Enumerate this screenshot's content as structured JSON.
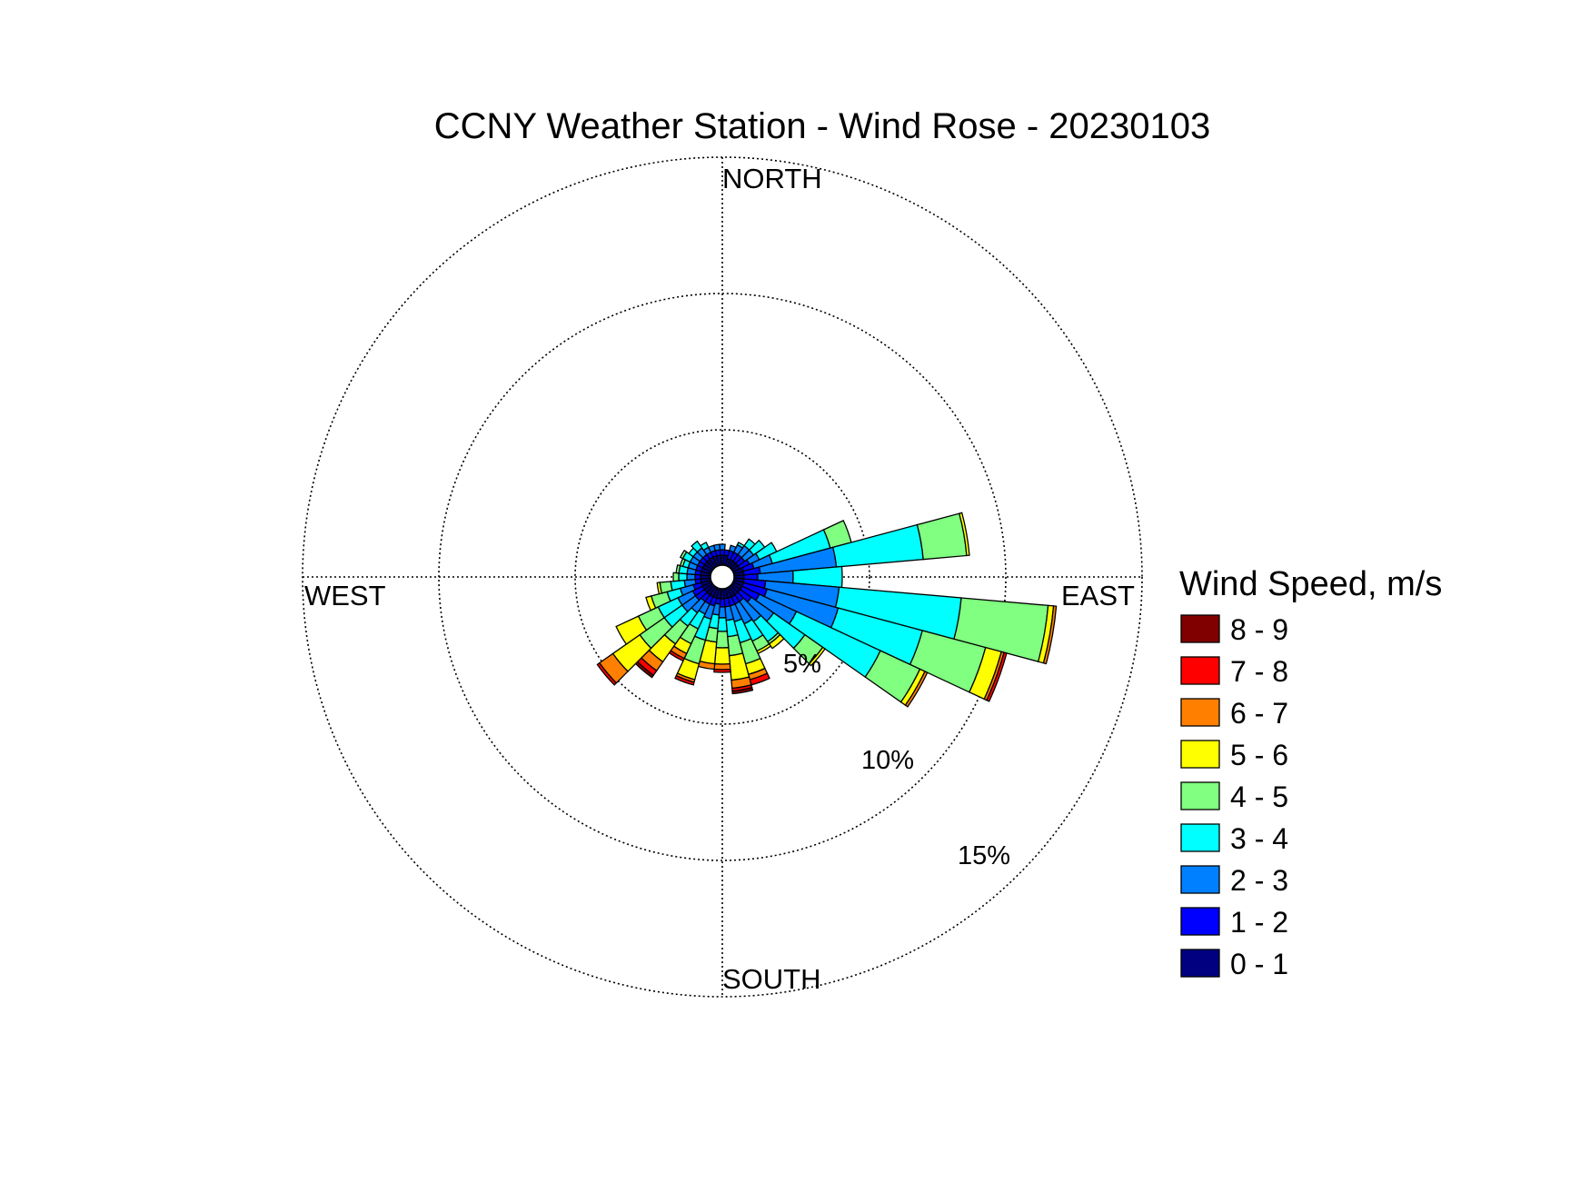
{
  "chart_data": {
    "type": "wind-rose",
    "title": "CCNY Weather Station - Wind Rose - 20230103",
    "directions": {
      "north": "NORTH",
      "south": "SOUTH",
      "west": "WEST",
      "east": "EAST"
    },
    "radial_ticks": [
      "5%",
      "10%",
      "15%"
    ],
    "radial_tick_values": [
      5,
      10,
      15
    ],
    "radial_max": 15,
    "grid": true,
    "legend": {
      "title": "Wind Speed, m/s",
      "placement": "right",
      "bins": [
        {
          "label": "8 - 9",
          "color": "#800000"
        },
        {
          "label": "7 - 8",
          "color": "#ff0000"
        },
        {
          "label": "6 - 7",
          "color": "#ff8000"
        },
        {
          "label": "5 - 6",
          "color": "#ffff00"
        },
        {
          "label": "4 - 5",
          "color": "#80ff80"
        },
        {
          "label": "3 - 4",
          "color": "#00ffff"
        },
        {
          "label": "2 - 3",
          "color": "#0080ff"
        },
        {
          "label": "1 - 2",
          "color": "#0000ff"
        },
        {
          "label": "0 - 1",
          "color": "#000080"
        }
      ]
    },
    "speed_colors_low_to_high": [
      "#000080",
      "#0000ff",
      "#0080ff",
      "#00ffff",
      "#80ff80",
      "#ffff00",
      "#ff8000",
      "#ff0000",
      "#800000"
    ],
    "sector_width_deg": 10,
    "sectors": [
      {
        "dir": 0,
        "cum": [
          0.4,
          0.6,
          0.8
        ]
      },
      {
        "dir": 10,
        "cum": [
          0.4,
          0.6
        ]
      },
      {
        "dir": 20,
        "cum": [
          0.3,
          0.6,
          0.8
        ]
      },
      {
        "dir": 30,
        "cum": [
          0.3,
          0.6,
          0.9,
          1.0
        ]
      },
      {
        "dir": 40,
        "cum": [
          0.3,
          0.6,
          1.0,
          1.3
        ]
      },
      {
        "dir": 50,
        "cum": [
          0.3,
          0.6,
          1.0,
          1.5
        ]
      },
      {
        "dir": 60,
        "cum": [
          0.3,
          0.7,
          1.1,
          1.8
        ]
      },
      {
        "dir": 70,
        "cum": [
          0.4,
          0.8,
          1.5,
          3.7,
          4.5
        ]
      },
      {
        "dir": 80,
        "cum": [
          0.4,
          1.0,
          3.8,
          7.0,
          8.6,
          8.7
        ]
      },
      {
        "dir": 90,
        "cum": [
          0.4,
          0.9,
          2.2,
          4.0
        ]
      },
      {
        "dir": 100,
        "cum": [
          0.4,
          1.2,
          3.9,
          8.4,
          11.6,
          11.8,
          11.9
        ]
      },
      {
        "dir": 110,
        "cum": [
          0.4,
          1.3,
          4.0,
          7.2,
          9.6,
          10.2,
          10.3,
          10.4
        ]
      },
      {
        "dir": 120,
        "cum": [
          0.4,
          1.1,
          2.6,
          6.0,
          7.6,
          7.8,
          7.9
        ]
      },
      {
        "dir": 130,
        "cum": [
          0.4,
          0.9,
          1.9,
          3.3,
          4.1,
          4.2
        ]
      },
      {
        "dir": 140,
        "cum": [
          0.4,
          0.7,
          1.6,
          2.5,
          2.6,
          2.8
        ]
      },
      {
        "dir": 150,
        "cum": [
          0.4,
          0.7,
          1.5,
          2.2,
          2.6,
          2.7
        ]
      },
      {
        "dir": 160,
        "cum": [
          0.4,
          0.7,
          1.3,
          2.1,
          2.9,
          3.3,
          3.5,
          3.7
        ]
      },
      {
        "dir": 170,
        "cum": [
          0.4,
          0.7,
          1.2,
          1.8,
          2.5,
          3.4,
          3.7,
          3.8,
          3.9
        ]
      },
      {
        "dir": 180,
        "cum": [
          0.4,
          0.7,
          1.1,
          1.6,
          2.2,
          2.8,
          3.0,
          3.1
        ]
      },
      {
        "dir": 190,
        "cum": [
          0.4,
          0.6,
          1.0,
          1.5,
          2.0,
          2.8,
          3.0
        ]
      },
      {
        "dir": 200,
        "cum": [
          0.4,
          0.7,
          1.2,
          2.0,
          2.9,
          3.5,
          3.6,
          3.7
        ]
      },
      {
        "dir": 210,
        "cum": [
          0.4,
          0.7,
          1.1,
          1.7,
          2.3,
          2.7,
          2.9,
          3.0
        ]
      },
      {
        "dir": 220,
        "cum": [
          0.4,
          0.7,
          1.2,
          1.8,
          2.6,
          3.4,
          3.8,
          4.0,
          4.1
        ]
      },
      {
        "dir": 230,
        "cum": [
          0.4,
          0.8,
          1.4,
          2.2,
          3.3,
          4.5,
          5.1,
          5.2
        ]
      },
      {
        "dir": 240,
        "cum": [
          0.4,
          0.8,
          1.4,
          2.2,
          3.0,
          3.9
        ]
      },
      {
        "dir": 250,
        "cum": [
          0.4,
          0.7,
          1.2,
          1.7,
          2.3,
          2.5
        ]
      },
      {
        "dir": 260,
        "cum": [
          0.4,
          0.6,
          1.0,
          1.5,
          1.9,
          2.0
        ]
      },
      {
        "dir": 270,
        "cum": [
          0.4,
          0.6,
          0.9,
          1.2,
          1.4
        ]
      },
      {
        "dir": 280,
        "cum": [
          0.4,
          0.6,
          0.9,
          1.2,
          1.3
        ]
      },
      {
        "dir": 290,
        "cum": [
          0.4,
          0.6,
          0.9,
          1.1,
          1.2
        ]
      },
      {
        "dir": 300,
        "cum": [
          0.4,
          0.6,
          0.9,
          1.2,
          1.3
        ]
      },
      {
        "dir": 310,
        "cum": [
          0.4,
          0.6,
          0.9,
          1.1
        ]
      },
      {
        "dir": 320,
        "cum": [
          0.4,
          0.6,
          0.9,
          1.2
        ]
      },
      {
        "dir": 330,
        "cum": [
          0.4,
          0.6,
          0.8,
          1.0
        ]
      },
      {
        "dir": 340,
        "cum": [
          0.4,
          0.6,
          0.8
        ]
      },
      {
        "dir": 350,
        "cum": [
          0.4,
          0.6,
          0.8
        ]
      }
    ]
  }
}
